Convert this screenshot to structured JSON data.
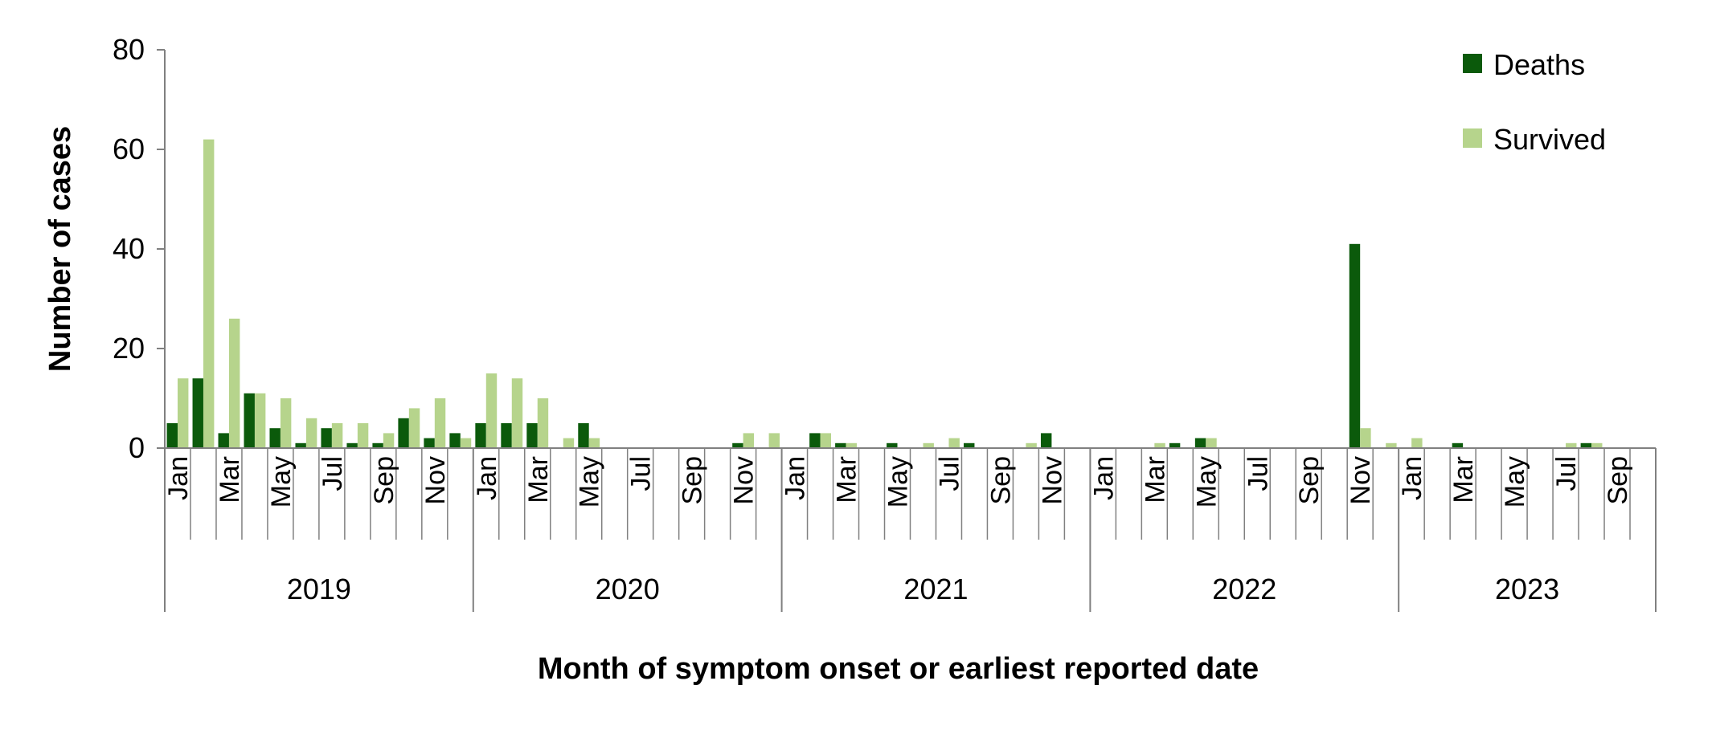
{
  "chart_data": {
    "type": "bar",
    "title": "",
    "xlabel": "Month of symptom onset or earliest reported date",
    "ylabel": "Number of cases",
    "ylim": [
      0,
      80
    ],
    "yticks": [
      0,
      20,
      40,
      60,
      80
    ],
    "grid": false,
    "legend_position": "top-right",
    "years": [
      "2019",
      "2020",
      "2021",
      "2022",
      "2023"
    ],
    "categories": [
      "Jan 2019",
      "Feb 2019",
      "Mar 2019",
      "Apr 2019",
      "May 2019",
      "Jun 2019",
      "Jul 2019",
      "Aug 2019",
      "Sep 2019",
      "Oct 2019",
      "Nov 2019",
      "Dec 2019",
      "Jan 2020",
      "Feb 2020",
      "Mar 2020",
      "Apr 2020",
      "May 2020",
      "Jun 2020",
      "Jul 2020",
      "Aug 2020",
      "Sep 2020",
      "Oct 2020",
      "Nov 2020",
      "Dec 2020",
      "Jan 2021",
      "Feb 2021",
      "Mar 2021",
      "Apr 2021",
      "May 2021",
      "Jun 2021",
      "Jul 2021",
      "Aug 2021",
      "Sep 2021",
      "Oct 2021",
      "Nov 2021",
      "Dec 2021",
      "Jan 2022",
      "Feb 2022",
      "Mar 2022",
      "Apr 2022",
      "May 2022",
      "Jun 2022",
      "Jul 2022",
      "Aug 2022",
      "Sep 2022",
      "Oct 2022",
      "Nov 2022",
      "Dec 2022",
      "Jan 2023",
      "Feb 2023",
      "Mar 2023",
      "Apr 2023",
      "May 2023",
      "Jun 2023",
      "Jul 2023",
      "Aug 2023",
      "Sep 2023",
      "Oct 2023"
    ],
    "tick_labels": [
      "Jan",
      "",
      "Mar",
      "",
      "May",
      "",
      "Jul",
      "",
      "Sep",
      "",
      "Nov",
      "",
      "Jan",
      "",
      "Mar",
      "",
      "May",
      "",
      "Jul",
      "",
      "Sep",
      "",
      "Nov",
      "",
      "Jan",
      "",
      "Mar",
      "",
      "May",
      "",
      "Jul",
      "",
      "Sep",
      "",
      "Nov",
      "",
      "Jan",
      "",
      "Mar",
      "",
      "May",
      "",
      "Jul",
      "",
      "Sep",
      "",
      "Nov",
      "",
      "Jan",
      "",
      "Mar",
      "",
      "May",
      "",
      "Jul",
      "",
      "Sep",
      ""
    ],
    "series": [
      {
        "name": "Deaths",
        "color": "#0b5a0b",
        "values": [
          5,
          14,
          3,
          11,
          4,
          1,
          4,
          1,
          1,
          6,
          2,
          3,
          5,
          5,
          5,
          0,
          5,
          0,
          0,
          0,
          0,
          0,
          1,
          0,
          0,
          3,
          1,
          0,
          1,
          0,
          0,
          1,
          0,
          0,
          3,
          0,
          0,
          0,
          0,
          1,
          2,
          0,
          0,
          0,
          0,
          0,
          41,
          0,
          0,
          0,
          1,
          0,
          0,
          0,
          0,
          1,
          0,
          0
        ]
      },
      {
        "name": "Survived",
        "color": "#b6d48c",
        "values": [
          14,
          62,
          26,
          11,
          10,
          6,
          5,
          5,
          3,
          8,
          10,
          2,
          15,
          14,
          10,
          2,
          2,
          0,
          0,
          0,
          0,
          0,
          3,
          3,
          0,
          3,
          1,
          0,
          0,
          1,
          2,
          0,
          0,
          1,
          0,
          0,
          0,
          0,
          1,
          0,
          2,
          0,
          0,
          0,
          0,
          0,
          4,
          1,
          2,
          0,
          0,
          0,
          0,
          0,
          1,
          1,
          0,
          0
        ]
      }
    ]
  }
}
